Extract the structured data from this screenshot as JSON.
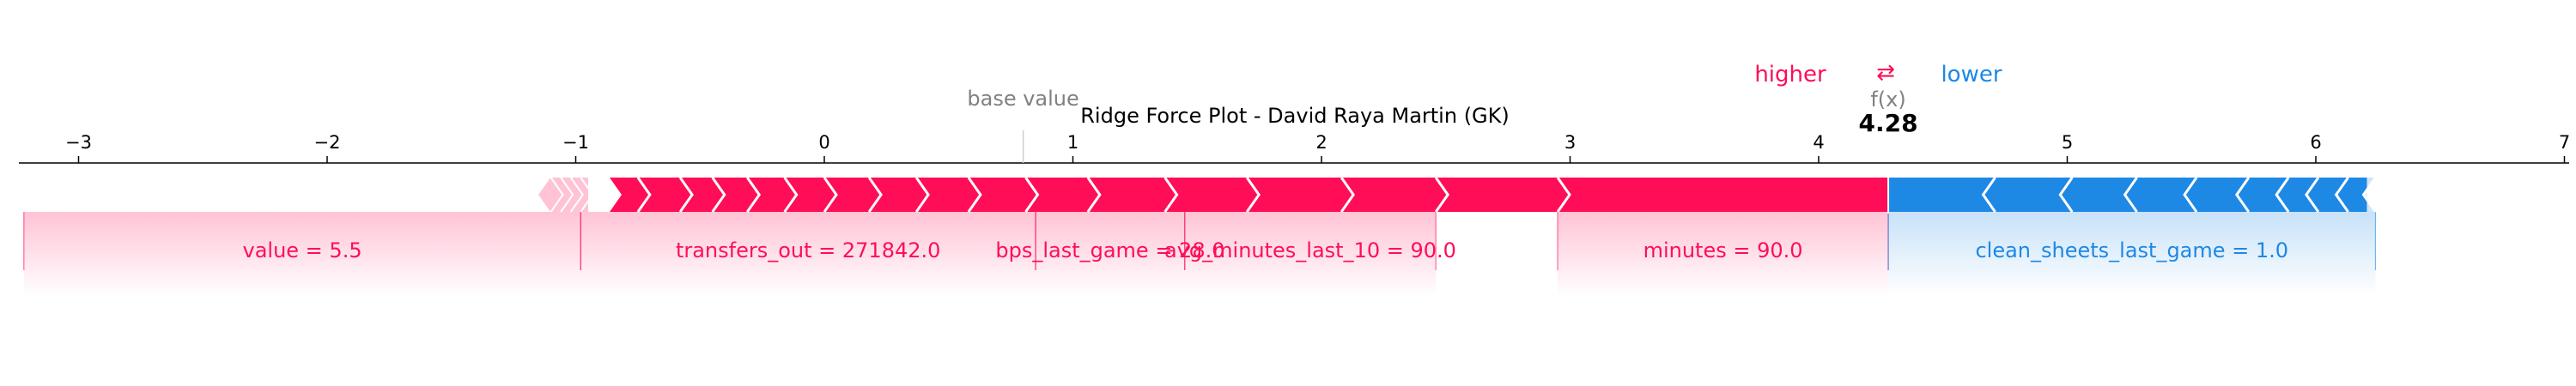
{
  "legend": {
    "higher": "higher",
    "arrows": "⇄",
    "lower": "lower"
  },
  "labels": {
    "base_value": "base value",
    "fx": "f(x)",
    "fx_value": "4.28"
  },
  "colors": {
    "positive": "#ff0d57",
    "negative": "#1e88e5",
    "positive_light": "#ffc3d5",
    "negative_light": "#d1e6fa",
    "axis": "#000000",
    "muted": "#808080"
  },
  "chart_data": {
    "type": "force",
    "title": "Ridge Force Plot - David Raya Martin (GK)",
    "xlim": [
      -3.2,
      7.1
    ],
    "xticks": [
      -3,
      -2,
      -1,
      0,
      1,
      2,
      3,
      4,
      5,
      6,
      7
    ],
    "base_value": 0.8,
    "output_value": 4.28,
    "positive_start": -1.15,
    "negative_end": 6.24,
    "positive_boundaries": [
      -0.87,
      -0.75,
      -0.58,
      -0.45,
      -0.31,
      -0.16,
      0.0,
      0.18,
      0.37,
      0.58,
      0.81,
      1.06,
      1.37,
      1.7,
      2.08,
      2.46,
      2.95,
      4.28
    ],
    "negative_boundaries": [
      4.28,
      4.71,
      5.02,
      5.28,
      5.52,
      5.73,
      5.89,
      6.01,
      6.13,
      6.24
    ],
    "positive_labels": [
      {
        "text": "value = 5.5",
        "from": -1.15,
        "to": -0.98
      },
      {
        "text": "transfers_out = 271842.0",
        "from": -0.98,
        "to": 0.85
      },
      {
        "text": "bps_last_game = 28.0",
        "from": 0.85,
        "to": 1.45
      },
      {
        "text": "avg_minutes_last_10 = 90.0",
        "from": 1.45,
        "to": 2.46
      },
      {
        "text": "minutes = 90.0",
        "from": 2.95,
        "to": 4.28
      }
    ],
    "negative_labels": [
      {
        "text": "clean_sheets_last_game = 1.0",
        "from": 4.28,
        "to": 6.24
      }
    ]
  }
}
